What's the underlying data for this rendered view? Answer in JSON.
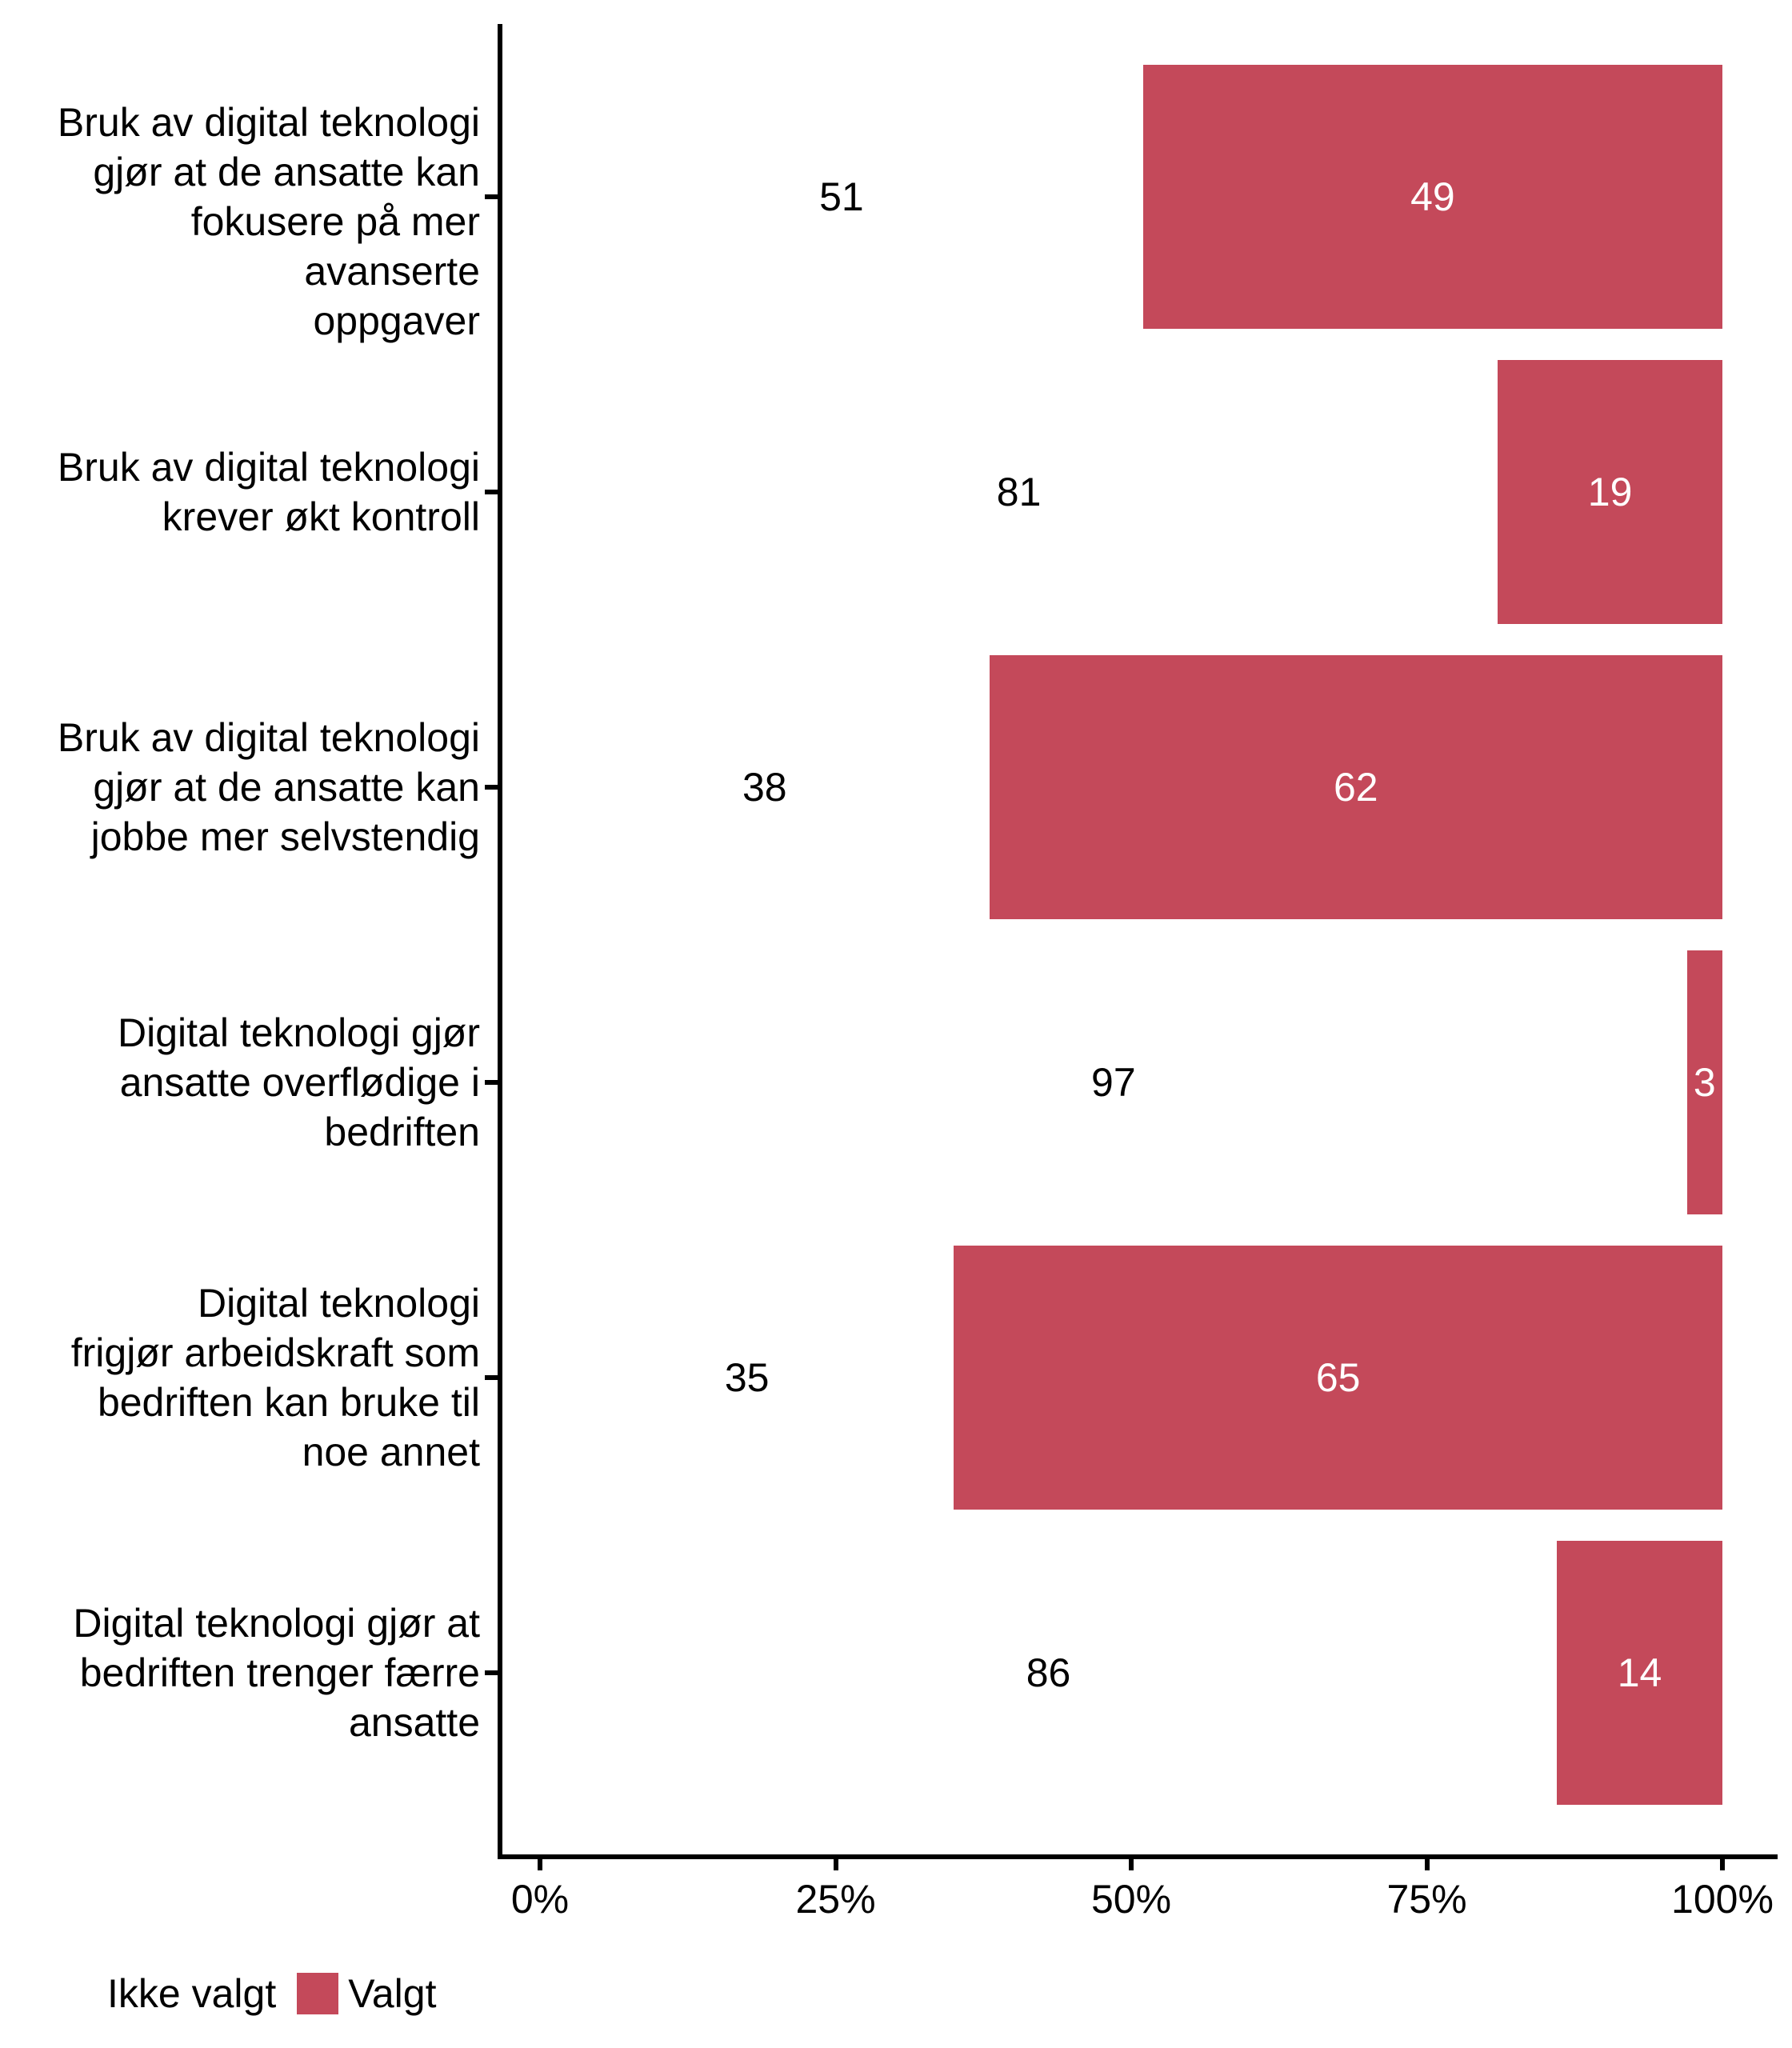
{
  "chart_data": {
    "type": "bar",
    "orientation": "horizontal",
    "stacked": true,
    "value_unit": "percent",
    "title": "",
    "xlabel": "",
    "ylabel": "",
    "xlim": [
      0,
      100
    ],
    "x_ticks": [
      "0%",
      "25%",
      "50%",
      "75%",
      "100%"
    ],
    "x_tick_values": [
      0,
      25,
      50,
      75,
      100
    ],
    "grid": false,
    "categories": [
      "Bruk av digital teknologi gjør at de ansatte kan fokusere på mer avanserte oppgaver",
      "Bruk av digital teknologi krever økt kontroll",
      "Bruk av digital teknologi gjør at de ansatte kan jobbe mer selvstendig",
      "Digital teknologi gjør ansatte overflødige i bedriften",
      "Digital teknologi frigjør arbeidskraft som bedriften kan bruke til noe annet",
      "Digital teknologi gjør at bedriften trenger færre ansatte"
    ],
    "category_lines": [
      [
        "Bruk av digital teknologi",
        "gjør at de ansatte kan",
        "fokusere på mer avanserte",
        "oppgaver"
      ],
      [
        "Bruk av digital teknologi",
        "krever økt kontroll"
      ],
      [
        "Bruk av digital teknologi",
        "gjør at de ansatte kan",
        "jobbe mer selvstendig"
      ],
      [
        "Digital teknologi gjør",
        "ansatte overflødige i",
        "bedriften"
      ],
      [
        "Digital teknologi",
        "frigjør arbeidskraft som",
        "bedriften kan bruke til",
        "noe annet"
      ],
      [
        "Digital teknologi gjør at",
        "bedriften trenger færre",
        "ansatte"
      ]
    ],
    "series": [
      {
        "name": "Ikke valgt",
        "color": "#FFFFFF",
        "label_color": "#000000",
        "values": [
          51,
          81,
          38,
          97,
          35,
          86
        ]
      },
      {
        "name": "Valgt",
        "color": "#C4495A",
        "label_color": "#FFFFFF",
        "values": [
          49,
          19,
          62,
          3,
          65,
          14
        ]
      }
    ],
    "legend": {
      "position": "bottom-left",
      "entries": [
        {
          "label": "Ikke valgt",
          "color": "#FFFFFF"
        },
        {
          "label": "Valgt",
          "color": "#C4495A"
        }
      ]
    }
  },
  "colors": {
    "background": "#FFFFFF",
    "axis": "#000000",
    "text": "#000000",
    "valgt_red": "#C4495A"
  }
}
